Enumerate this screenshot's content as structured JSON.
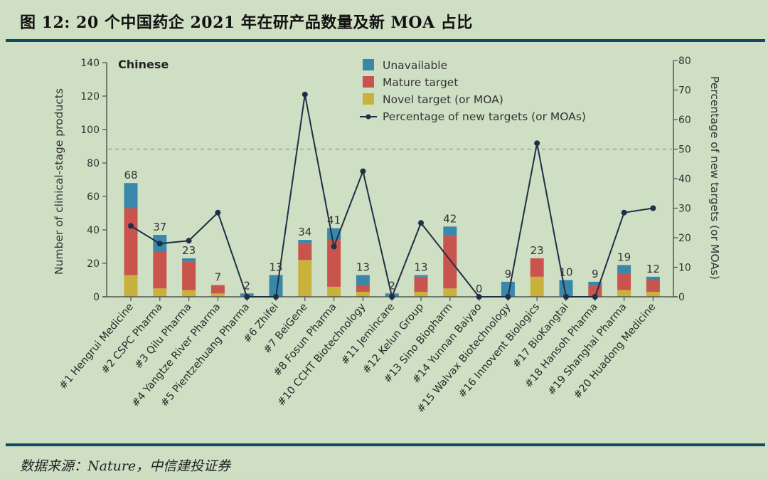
{
  "figure": {
    "title": "图 12: 20 个中国药企 2021 年在研产品数量及新 MOA 占比",
    "source": "数据来源：Nature，中信建投证券"
  },
  "chart_data": {
    "type": "bar",
    "stacked": true,
    "subtitle": "Chinese",
    "ylabel": "Number of clinical-stage products",
    "y2label": "Percentage of new targets (or MOAs)",
    "ylim": [
      0,
      140
    ],
    "y2lim": [
      0,
      80
    ],
    "yticks": [
      0,
      20,
      40,
      60,
      80,
      100,
      120,
      140
    ],
    "y2ticks": [
      0,
      10,
      20,
      30,
      40,
      50,
      60,
      70,
      80
    ],
    "reference_line_y2": 50,
    "legend_position": "top-center",
    "categories": [
      "#1 Hengrui Medicine",
      "#2 CSPC Pharma",
      "#3 Qilu Pharma",
      "#4 Yangtze River Pharma",
      "#5 Pientzehuang Pharma",
      "#6 Zhifei",
      "#7 BeiGene",
      "#8 Fosun Pharma",
      "#10 CCHT Biotechnology",
      "#11 Jemincare",
      "#12 Kelun Group",
      "#13 Sino Biopharm",
      "#14 Yunnan Baiyao",
      "#15 Walvax Biotechnology",
      "#16 Innovent Biologics",
      "#17 BioKangtai",
      "#18 Hansoh Pharma",
      "#19 Shanghai Pharma",
      "#20 Huadong Medicine"
    ],
    "totals": [
      68,
      37,
      23,
      7,
      2,
      13,
      34,
      41,
      13,
      2,
      13,
      42,
      0,
      9,
      23,
      10,
      9,
      19,
      12
    ],
    "series": [
      {
        "name": "Novel target (or MOA)",
        "color": "#c9b23c",
        "values": [
          13,
          5,
          4,
          2,
          0,
          0,
          22,
          6,
          3,
          0,
          3,
          5,
          0,
          0,
          12,
          0,
          0,
          4,
          3
        ]
      },
      {
        "name": "Mature target",
        "color": "#c9544d",
        "values": [
          40,
          22,
          17,
          5,
          0,
          0,
          10,
          28,
          4,
          0,
          9,
          32,
          0,
          0,
          11,
          0,
          7,
          10,
          7
        ]
      },
      {
        "name": "Unavailable",
        "color": "#3a87ac",
        "values": [
          15,
          10,
          2,
          0,
          2,
          13,
          2,
          7,
          6,
          2,
          1,
          5,
          0,
          9,
          0,
          10,
          2,
          5,
          2
        ]
      }
    ],
    "line": {
      "name": "Percentage of new targets (or MOAs)",
      "color": "#1f2f45",
      "axis": "right",
      "values": [
        24,
        18,
        19,
        28.5,
        0,
        0,
        68.5,
        17,
        42.5,
        0,
        25,
        null,
        0,
        0,
        52,
        0,
        0,
        28.5,
        30
      ]
    },
    "legend": [
      "Unavailable",
      "Mature target",
      "Novel target (or MOA)",
      "Percentage of new targets (or MOAs)"
    ]
  }
}
